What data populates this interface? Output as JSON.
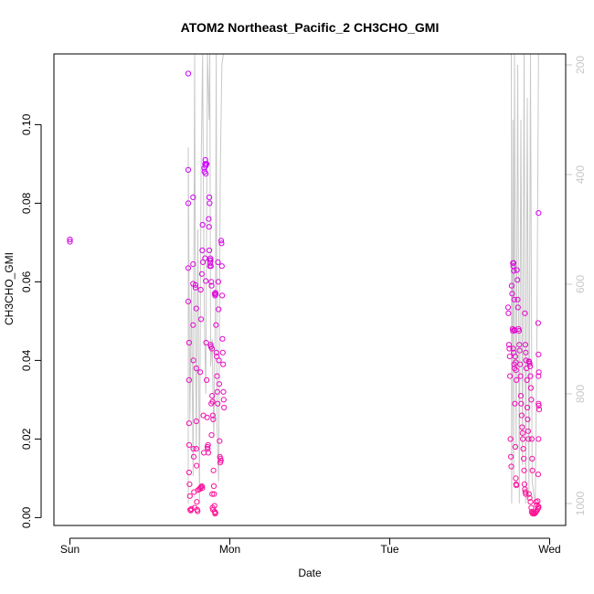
{
  "chart_data": {
    "type": "scatter",
    "title": "ATOM2 Northeast_Pacific_2 CH3CHO_GMI",
    "xlabel": "Date",
    "ylabel": "CH3CHO_GMI",
    "x_unit": "days since Sun 00:00",
    "xlim": [
      -0.1,
      3.1
    ],
    "ylim": [
      -0.002,
      0.118
    ],
    "x_ticks": [
      {
        "value": 0,
        "label": "Sun"
      },
      {
        "value": 1,
        "label": "Mon"
      },
      {
        "value": 2,
        "label": "Tue"
      },
      {
        "value": 3,
        "label": "Wed"
      }
    ],
    "y_ticks": [
      {
        "value": 0.0,
        "label": "0.00"
      },
      {
        "value": 0.02,
        "label": "0.02"
      },
      {
        "value": 0.04,
        "label": "0.04"
      },
      {
        "value": 0.06,
        "label": "0.06"
      },
      {
        "value": 0.08,
        "label": "0.08"
      },
      {
        "value": 0.1,
        "label": "0.10"
      }
    ],
    "y2_label": "",
    "y2_reversed": true,
    "y2_lim": [
      1040,
      180
    ],
    "y2_ticks": [
      {
        "value": 200,
        "label": "200"
      },
      {
        "value": 400,
        "label": "400"
      },
      {
        "value": 600,
        "label": "600"
      },
      {
        "value": 800,
        "label": "800"
      },
      {
        "value": 1000,
        "label": "1000"
      }
    ],
    "grid": false,
    "colors": {
      "point_low_altitude": "#ff1493",
      "point_high_altitude": "#cc00ff",
      "pressure_line": "#c8c8c8",
      "axis": "#000000",
      "right_axis": "#c8c8c8"
    },
    "series": [
      {
        "type": "scatter",
        "values_y_axis": "left",
        "points": [
          [
            0.0,
            0.0708
          ],
          [
            0.0,
            0.0702
          ],
          [
            0.74,
            0.113
          ],
          [
            0.74,
            0.0885
          ],
          [
            0.74,
            0.08
          ],
          [
            0.74,
            0.0635
          ],
          [
            0.74,
            0.055
          ],
          [
            0.745,
            0.0445
          ],
          [
            0.745,
            0.035
          ],
          [
            0.745,
            0.024
          ],
          [
            0.745,
            0.0185
          ],
          [
            0.745,
            0.0115
          ],
          [
            0.748,
            0.0085
          ],
          [
            0.75,
            0.0055
          ],
          [
            0.752,
            0.002
          ],
          [
            0.756,
            0.0018
          ],
          [
            0.76,
            0.0022
          ],
          [
            0.77,
            0.0815
          ],
          [
            0.77,
            0.0645
          ],
          [
            0.77,
            0.0595
          ],
          [
            0.77,
            0.049
          ],
          [
            0.772,
            0.04
          ],
          [
            0.772,
            0.0175
          ],
          [
            0.774,
            0.0155
          ],
          [
            0.776,
            0.0065
          ],
          [
            0.78,
            0.0025
          ],
          [
            0.785,
            0.0592
          ],
          [
            0.785,
            0.0585
          ],
          [
            0.79,
            0.0532
          ],
          [
            0.79,
            0.038
          ],
          [
            0.79,
            0.0245
          ],
          [
            0.79,
            0.0175
          ],
          [
            0.792,
            0.0132
          ],
          [
            0.794,
            0.004
          ],
          [
            0.796,
            0.002
          ],
          [
            0.798,
            0.0016
          ],
          [
            0.8,
            0.007
          ],
          [
            0.81,
            0.0072
          ],
          [
            0.815,
            0.0075
          ],
          [
            0.82,
            0.0078
          ],
          [
            0.825,
            0.008
          ],
          [
            0.828,
            0.0075
          ],
          [
            0.815,
            0.037
          ],
          [
            0.818,
            0.058
          ],
          [
            0.82,
            0.0505
          ],
          [
            0.825,
            0.062
          ],
          [
            0.828,
            0.068
          ],
          [
            0.83,
            0.0745
          ],
          [
            0.832,
            0.065
          ],
          [
            0.835,
            0.026
          ],
          [
            0.838,
            0.0165
          ],
          [
            0.84,
            0.089
          ],
          [
            0.842,
            0.088
          ],
          [
            0.845,
            0.09
          ],
          [
            0.847,
            0.091
          ],
          [
            0.849,
            0.0895
          ],
          [
            0.85,
            0.0875
          ],
          [
            0.852,
            0.09
          ],
          [
            0.855,
            0.09
          ],
          [
            0.845,
            0.066
          ],
          [
            0.85,
            0.0602
          ],
          [
            0.852,
            0.0445
          ],
          [
            0.855,
            0.035
          ],
          [
            0.858,
            0.0255
          ],
          [
            0.86,
            0.018
          ],
          [
            0.862,
            0.0175
          ],
          [
            0.864,
            0.0185
          ],
          [
            0.866,
            0.0165
          ],
          [
            0.868,
            0.076
          ],
          [
            0.87,
            0.074
          ],
          [
            0.872,
            0.068
          ],
          [
            0.875,
            0.064
          ],
          [
            0.878,
            0.066
          ],
          [
            0.88,
            0.044
          ],
          [
            0.882,
            0.0435
          ],
          [
            0.884,
            0.029
          ],
          [
            0.886,
            0.021
          ],
          [
            0.872,
            0.0815
          ],
          [
            0.874,
            0.08
          ],
          [
            0.876,
            0.0655
          ],
          [
            0.878,
            0.0648
          ],
          [
            0.88,
            0.0655
          ],
          [
            0.882,
            0.064
          ],
          [
            0.884,
            0.06
          ],
          [
            0.886,
            0.059
          ],
          [
            0.888,
            0.043
          ],
          [
            0.89,
            0.031
          ],
          [
            0.892,
            0.0295
          ],
          [
            0.894,
            0.026
          ],
          [
            0.896,
            0.025
          ],
          [
            0.898,
            0.012
          ],
          [
            0.9,
            0.008
          ],
          [
            0.902,
            0.006
          ],
          [
            0.904,
            0.003
          ],
          [
            0.906,
            0.0015
          ],
          [
            0.908,
            0.001
          ],
          [
            0.91,
            0.0012
          ],
          [
            0.89,
            0.006
          ],
          [
            0.892,
            0.0025
          ],
          [
            0.895,
            0.002
          ],
          [
            0.905,
            0.057
          ],
          [
            0.908,
            0.0565
          ],
          [
            0.91,
            0.0572
          ],
          [
            0.912,
            0.0568
          ],
          [
            0.914,
            0.049
          ],
          [
            0.916,
            0.042
          ],
          [
            0.918,
            0.041
          ],
          [
            0.92,
            0.036
          ],
          [
            0.922,
            0.032
          ],
          [
            0.924,
            0.029
          ],
          [
            0.926,
            0.065
          ],
          [
            0.928,
            0.06
          ],
          [
            0.93,
            0.053
          ],
          [
            0.932,
            0.04
          ],
          [
            0.934,
            0.034
          ],
          [
            0.936,
            0.0195
          ],
          [
            0.938,
            0.0155
          ],
          [
            0.94,
            0.014
          ],
          [
            0.942,
            0.015
          ],
          [
            0.944,
            0.0145
          ],
          [
            0.946,
            0.0705
          ],
          [
            0.948,
            0.0698
          ],
          [
            0.95,
            0.064
          ],
          [
            0.952,
            0.0565
          ],
          [
            0.954,
            0.0455
          ],
          [
            0.956,
            0.042
          ],
          [
            0.958,
            0.039
          ],
          [
            0.96,
            0.032
          ],
          [
            0.962,
            0.03
          ],
          [
            0.964,
            0.028
          ],
          [
            2.74,
            0.0535
          ],
          [
            2.742,
            0.052
          ],
          [
            2.745,
            0.044
          ],
          [
            2.748,
            0.043
          ],
          [
            2.75,
            0.041
          ],
          [
            2.752,
            0.036
          ],
          [
            2.755,
            0.02
          ],
          [
            2.758,
            0.0155
          ],
          [
            2.76,
            0.013
          ],
          [
            2.762,
            0.059
          ],
          [
            2.765,
            0.057
          ],
          [
            2.768,
            0.048
          ],
          [
            2.77,
            0.0475
          ],
          [
            2.772,
            0.043
          ],
          [
            2.775,
            0.042
          ],
          [
            2.778,
            0.039
          ],
          [
            2.78,
            0.038
          ],
          [
            2.782,
            0.029
          ],
          [
            2.785,
            0.018
          ],
          [
            2.788,
            0.01
          ],
          [
            2.79,
            0.0085
          ],
          [
            2.792,
            0.0082
          ],
          [
            2.77,
            0.0648
          ],
          [
            2.772,
            0.064
          ],
          [
            2.774,
            0.0648
          ],
          [
            2.776,
            0.0628
          ],
          [
            2.778,
            0.0555
          ],
          [
            2.78,
            0.0478
          ],
          [
            2.782,
            0.0476
          ],
          [
            2.785,
            0.041
          ],
          [
            2.788,
            0.0395
          ],
          [
            2.79,
            0.0375
          ],
          [
            2.792,
            0.035
          ],
          [
            2.795,
            0.063
          ],
          [
            2.798,
            0.0605
          ],
          [
            2.8,
            0.0555
          ],
          [
            2.802,
            0.0535
          ],
          [
            2.805,
            0.048
          ],
          [
            2.808,
            0.0475
          ],
          [
            2.81,
            0.044
          ],
          [
            2.812,
            0.0425
          ],
          [
            2.815,
            0.039
          ],
          [
            2.818,
            0.036
          ],
          [
            2.82,
            0.031
          ],
          [
            2.822,
            0.029
          ],
          [
            2.825,
            0.026
          ],
          [
            2.828,
            0.023
          ],
          [
            2.83,
            0.0215
          ],
          [
            2.832,
            0.02
          ],
          [
            2.835,
            0.0175
          ],
          [
            2.838,
            0.015
          ],
          [
            2.84,
            0.012
          ],
          [
            2.842,
            0.0085
          ],
          [
            2.845,
            0.0072
          ],
          [
            2.848,
            0.0065
          ],
          [
            2.85,
            0.006
          ],
          [
            2.845,
            0.052
          ],
          [
            2.848,
            0.044
          ],
          [
            2.85,
            0.042
          ],
          [
            2.852,
            0.04
          ],
          [
            2.855,
            0.038
          ],
          [
            2.858,
            0.035
          ],
          [
            2.86,
            0.028
          ],
          [
            2.862,
            0.025
          ],
          [
            2.865,
            0.022
          ],
          [
            2.868,
            0.02
          ],
          [
            2.87,
            0.0398
          ],
          [
            2.872,
            0.0396
          ],
          [
            2.875,
            0.0392
          ],
          [
            2.878,
            0.0385
          ],
          [
            2.88,
            0.036
          ],
          [
            2.882,
            0.033
          ],
          [
            2.885,
            0.03
          ],
          [
            2.888,
            0.02
          ],
          [
            2.89,
            0.015
          ],
          [
            2.892,
            0.012
          ],
          [
            2.87,
            0.006
          ],
          [
            2.875,
            0.005
          ],
          [
            2.88,
            0.004
          ],
          [
            2.885,
            0.0025
          ],
          [
            2.888,
            0.0015
          ],
          [
            2.89,
            0.0012
          ],
          [
            2.895,
            0.001
          ],
          [
            2.9,
            0.0012
          ],
          [
            2.905,
            0.001
          ],
          [
            2.91,
            0.0012
          ],
          [
            2.915,
            0.0015
          ],
          [
            2.92,
            0.0018
          ],
          [
            2.925,
            0.0022
          ],
          [
            2.93,
            0.0025
          ],
          [
            2.915,
            0.004
          ],
          [
            2.92,
            0.0032
          ],
          [
            2.925,
            0.0042
          ],
          [
            2.93,
            0.0028
          ],
          [
            2.93,
            0.0775
          ],
          [
            2.928,
            0.0495
          ],
          [
            2.93,
            0.0415
          ],
          [
            2.932,
            0.037
          ],
          [
            2.93,
            0.036
          ],
          [
            2.93,
            0.029
          ],
          [
            2.932,
            0.0285
          ],
          [
            2.934,
            0.0275
          ],
          [
            2.93,
            0.02
          ],
          [
            2.928,
            0.011
          ]
        ]
      }
    ],
    "pressure_line": {
      "values_y_axis": "right",
      "segments": [
        [
          [
            0.74,
            1000
          ],
          [
            0.74,
            350
          ],
          [
            0.75,
            850
          ],
          [
            0.76,
            600
          ],
          [
            0.77,
            950
          ],
          [
            0.78,
            180
          ],
          [
            0.785,
            700
          ],
          [
            0.79,
            900
          ],
          [
            0.8,
            500
          ],
          [
            0.81,
            1000
          ],
          [
            0.82,
            400
          ],
          [
            0.83,
            180
          ],
          [
            0.84,
            650
          ],
          [
            0.85,
            800
          ],
          [
            0.86,
            180
          ],
          [
            0.87,
            300
          ],
          [
            0.875,
            180
          ],
          [
            0.88,
            750
          ],
          [
            0.89,
            700
          ],
          [
            0.9,
            880
          ],
          [
            0.91,
            620
          ],
          [
            0.915,
            180
          ],
          [
            0.92,
            860
          ],
          [
            0.93,
            960
          ],
          [
            0.94,
            400
          ],
          [
            0.95,
            200
          ],
          [
            0.96,
            180
          ]
        ],
        [
          [
            2.74,
            180
          ],
          [
            2.76,
            180
          ],
          [
            2.762,
            1000
          ],
          [
            2.77,
            300
          ],
          [
            2.775,
            950
          ],
          [
            2.78,
            180
          ],
          [
            2.79,
            900
          ],
          [
            2.8,
            200
          ],
          [
            2.81,
            1000
          ],
          [
            2.82,
            300
          ],
          [
            2.83,
            930
          ],
          [
            2.84,
            180
          ],
          [
            2.85,
            1000
          ],
          [
            2.86,
            260
          ],
          [
            2.87,
            990
          ],
          [
            2.88,
            180
          ],
          [
            2.89,
            960
          ],
          [
            2.9,
            980
          ],
          [
            2.91,
            1000
          ],
          [
            2.92,
            700
          ],
          [
            2.93,
            180
          ]
        ]
      ]
    }
  }
}
